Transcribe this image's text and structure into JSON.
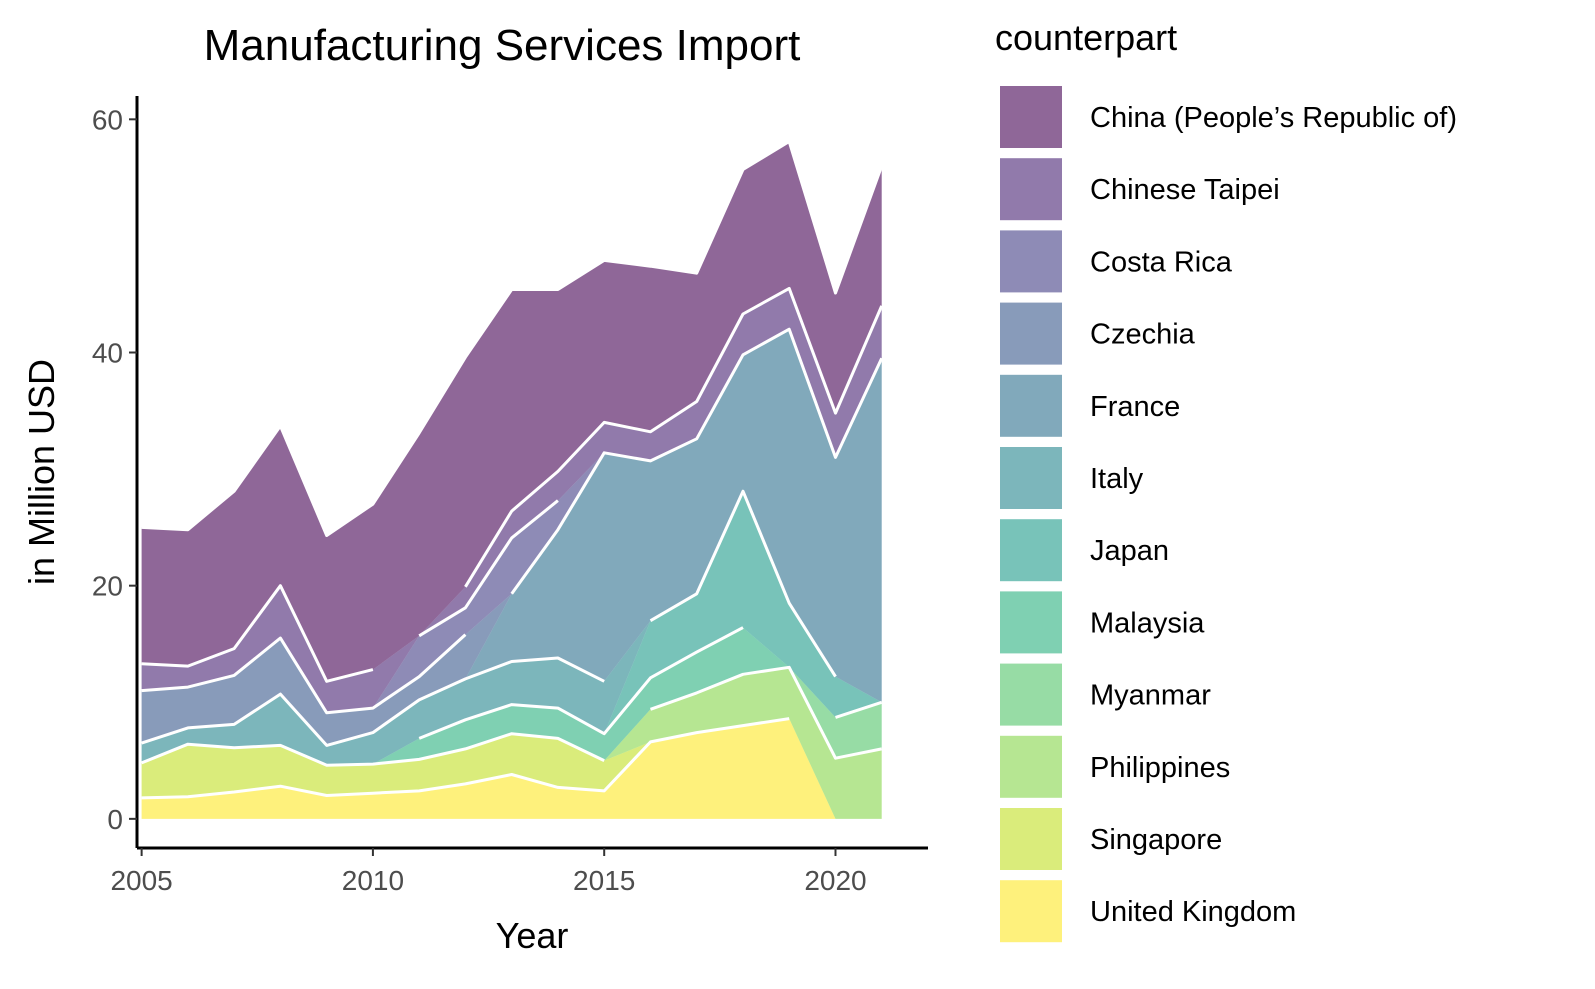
{
  "chart_data": {
    "type": "area",
    "stacked": true,
    "title": "Manufacturing Services Import",
    "xlabel": "Year",
    "ylabel": "in Million USD",
    "xlim": [
      2004.9,
      2022
    ],
    "ylim": [
      -2.5,
      62
    ],
    "x_ticks": [
      2005,
      2010,
      2015,
      2020
    ],
    "y_ticks": [
      0,
      20,
      40,
      60
    ],
    "grid": false,
    "legend": {
      "title": "counterpart",
      "position": "right"
    },
    "x": [
      2005,
      2006,
      2007,
      2008,
      2009,
      2010,
      2011,
      2012,
      2013,
      2014,
      2015,
      2016,
      2017,
      2018,
      2019,
      2020,
      2021
    ],
    "series": [
      {
        "name": "United Kingdom",
        "color": "#fde725",
        "values": [
          1.8,
          1.9,
          2.3,
          2.8,
          2.0,
          2.2,
          2.4,
          3.0,
          3.8,
          2.7,
          2.4,
          6.6,
          7.4,
          8.0,
          8.6,
          null,
          null
        ]
      },
      {
        "name": "Singapore",
        "color": "#c2df23",
        "values": [
          3.0,
          4.5,
          3.8,
          3.5,
          2.6,
          2.5,
          2.7,
          3.0,
          3.5,
          4.2,
          2.6,
          null,
          null,
          null,
          null,
          null,
          null
        ]
      },
      {
        "name": "Philippines",
        "color": "#86d549",
        "values": [
          null,
          null,
          null,
          null,
          null,
          null,
          null,
          null,
          null,
          null,
          null,
          2.8,
          3.4,
          4.4,
          4.4,
          5.2,
          6.0
        ]
      },
      {
        "name": "Myanmar",
        "color": "#52c569",
        "values": [
          null,
          null,
          null,
          null,
          null,
          null,
          null,
          null,
          null,
          null,
          null,
          null,
          null,
          null,
          null,
          3.5,
          4.0
        ]
      },
      {
        "name": "Malaysia",
        "color": "#2ab07f",
        "values": [
          null,
          null,
          null,
          null,
          null,
          null,
          1.8,
          2.5,
          2.5,
          2.6,
          2.3,
          2.7,
          3.5,
          4.0,
          null,
          null,
          null
        ]
      },
      {
        "name": "Japan",
        "color": "#1e9b8a",
        "values": [
          null,
          null,
          null,
          null,
          null,
          null,
          null,
          null,
          null,
          null,
          null,
          4.9,
          5.0,
          11.7,
          5.5,
          3.5,
          null
        ]
      },
      {
        "name": "Italy",
        "color": "#25858e",
        "values": [
          1.7,
          1.4,
          2.0,
          4.4,
          1.7,
          2.7,
          3.3,
          3.5,
          3.7,
          4.3,
          4.5,
          null,
          null,
          null,
          null,
          null,
          null
        ]
      },
      {
        "name": "France",
        "color": "#2d708e",
        "values": [
          null,
          null,
          null,
          null,
          null,
          null,
          null,
          null,
          5.8,
          11.0,
          19.6,
          13.7,
          13.3,
          11.7,
          23.5,
          18.8,
          29.5
        ]
      },
      {
        "name": "Czechia",
        "color": "#38588c",
        "values": [
          4.5,
          3.5,
          4.2,
          4.8,
          2.8,
          2.1,
          2.0,
          3.8,
          null,
          null,
          null,
          null,
          null,
          null,
          null,
          null,
          null
        ]
      },
      {
        "name": "Costa Rica",
        "color": "#433e85",
        "values": [
          null,
          null,
          null,
          null,
          null,
          null,
          3.5,
          2.3,
          4.8,
          2.5,
          null,
          null,
          null,
          null,
          null,
          null,
          null
        ]
      },
      {
        "name": "Chinese Taipei",
        "color": "#482173",
        "values": [
          2.3,
          1.8,
          2.3,
          4.5,
          2.7,
          3.3,
          null,
          1.8,
          2.3,
          2.5,
          2.6,
          2.5,
          3.2,
          3.5,
          3.5,
          3.8,
          4.5
        ]
      },
      {
        "name": "China (People’s Republic of)",
        "color": "#440154",
        "values": [
          11.7,
          11.7,
          13.5,
          13.7,
          12.5,
          14.2,
          17.4,
          19.7,
          19.0,
          15.6,
          13.9,
          14.2,
          11.0,
          12.4,
          12.6,
          10.3,
          12.0
        ]
      }
    ]
  }
}
